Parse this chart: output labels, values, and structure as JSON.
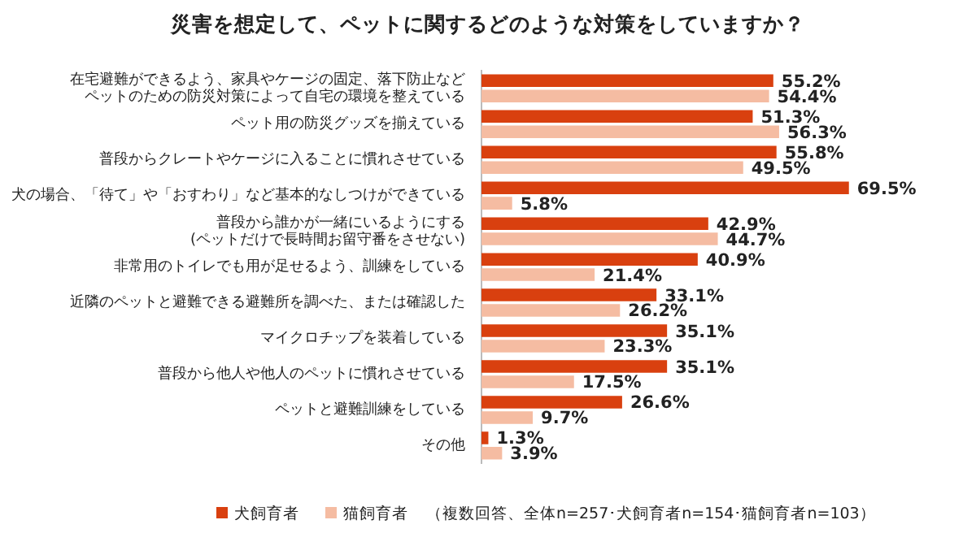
{
  "chart_data": {
    "type": "bar",
    "orientation": "horizontal",
    "title": "災害を想定して、ペットに関するどのような対策をしていますか？",
    "categories": [
      "在宅避難ができるよう、家具やケージの固定、落下防止などペットのための防災対策によって自宅の環境を整えている",
      "ペット用の防災グッズを揃えている",
      "普段からクレートやケージに入ることに慣れさせている",
      "犬の場合、「待て」や「おすわり」など基本的なしつけができている",
      "普段から誰かが一緒にいるようにする(ペットだけで長時間お留守番をさせない)",
      "非常用のトイレでも用が足せるよう、訓練をしている",
      "近隣のペットと避難できる避難所を調べた、または確認した",
      "マイクロチップを装着している",
      "普段から他人や他人のペットに慣れさせている",
      "ペットと避難訓練をしている",
      "その他"
    ],
    "series": [
      {
        "name": "犬飼育者",
        "color": "#d9400f",
        "values": [
          55.2,
          51.3,
          55.8,
          69.5,
          42.9,
          40.9,
          33.1,
          35.1,
          35.1,
          26.6,
          1.3
        ],
        "value_labels": [
          "55.2%",
          "51.3%",
          "55.8%",
          "69.5%",
          "42.9%",
          "40.9%",
          "33.1%",
          "35.1%",
          "35.1%",
          "26.6%",
          "1.3%"
        ]
      },
      {
        "name": "猫飼育者",
        "color": "#f5bca2",
        "values": [
          54.4,
          56.3,
          49.5,
          5.8,
          44.7,
          21.4,
          26.2,
          23.3,
          17.5,
          9.7,
          3.9
        ],
        "value_labels": [
          "54.4%",
          "56.3%",
          "49.5%",
          "5.8%",
          "44.7%",
          "21.4%",
          "26.2%",
          "23.3%",
          "17.5%",
          "9.7%",
          "3.9%"
        ]
      }
    ],
    "grid": false,
    "legend": "bottom",
    "tick_labels": "y",
    "annotations": [
      "（複数回答、全体n=257･犬飼育者n=154･猫飼育者n=103）"
    ]
  }
}
